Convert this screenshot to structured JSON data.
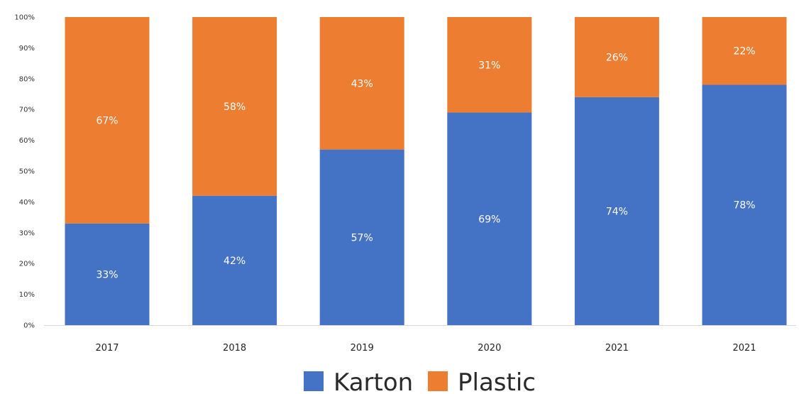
{
  "chart_data": {
    "type": "bar",
    "stacked": true,
    "categories": [
      "2017",
      "2018",
      "2019",
      "2020",
      "2021",
      "2021"
    ],
    "series": [
      {
        "name": "Karton",
        "values": [
          33,
          42,
          57,
          69,
          74,
          78
        ],
        "labels": [
          "33%",
          "42%",
          "57%",
          "69%",
          "74%",
          "78%"
        ],
        "color": "#4472C4"
      },
      {
        "name": "Plastic",
        "values": [
          67,
          58,
          43,
          31,
          26,
          22
        ],
        "labels": [
          "67%",
          "58%",
          "43%",
          "31%",
          "26%",
          "22%"
        ],
        "color": "#ED7D31"
      }
    ],
    "ylim": [
      0,
      100
    ],
    "yticks": [
      0,
      10,
      20,
      30,
      40,
      50,
      60,
      70,
      80,
      90,
      100
    ],
    "ytick_labels": [
      "0%",
      "10%",
      "20%",
      "30%",
      "40%",
      "50%",
      "60%",
      "70%",
      "80%",
      "90%",
      "100%"
    ],
    "grid": false,
    "legend_position": "bottom",
    "title": "",
    "xlabel": "",
    "ylabel": ""
  }
}
